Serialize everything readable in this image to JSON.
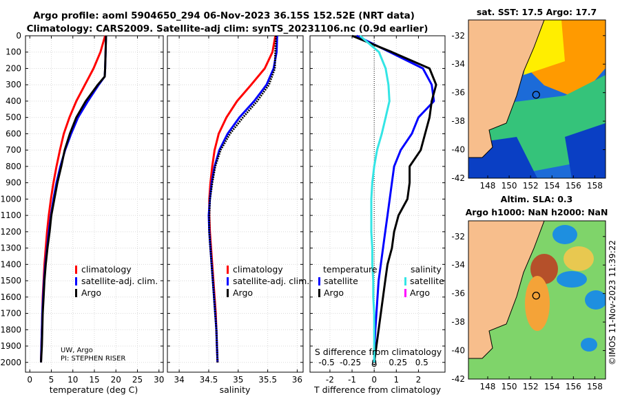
{
  "title": {
    "line1": "Argo profile: aoml 5904650_294 06-Nov-2023 36.15S 152.52E (NRT data)",
    "line2": "Climatology: CARS2009. Satellite-adj clim: synTS_20231106.nc (0.9d earlier)"
  },
  "credit": {
    "line1": "UW, Argo",
    "line2": "PI: STEPHEN RISER"
  },
  "watermark": "©IMOS 11-Nov-2023 11:39:22",
  "colors": {
    "climatology": "#ff0000",
    "satellite": "#0000ff",
    "argo": "#000000",
    "sat_s": "#33e5e5",
    "argo_s": "#ff00ff",
    "land": "#f7be8c"
  },
  "chart_data": [
    {
      "type": "line",
      "panel": "temperature",
      "xlabel": "temperature (deg C)",
      "xlim": [
        -1,
        31
      ],
      "xticks": [
        "0",
        "5",
        "10",
        "15",
        "20",
        "25",
        "30"
      ],
      "xtick_values": [
        0,
        5,
        10,
        15,
        20,
        25,
        30
      ],
      "ylim": [
        2060,
        0
      ],
      "yticks": [
        "0",
        "100",
        "200",
        "300",
        "400",
        "500",
        "600",
        "700",
        "800",
        "900",
        "1000",
        "1100",
        "1200",
        "1300",
        "1400",
        "1500",
        "1600",
        "1700",
        "1800",
        "1900",
        "2000"
      ],
      "ytick_values": [
        0,
        100,
        200,
        300,
        400,
        500,
        600,
        700,
        800,
        900,
        1000,
        1100,
        1200,
        1300,
        1400,
        1500,
        1600,
        1700,
        1800,
        1900,
        2000
      ],
      "legend": [
        "climatology",
        "satellite-adj. clim.",
        "Argo"
      ],
      "series": [
        {
          "name": "climatology",
          "color": "#ff0000",
          "depth": [
            0,
            100,
            200,
            300,
            400,
            500,
            600,
            700,
            800,
            900,
            1000,
            1100,
            1200,
            1300,
            1400,
            1500,
            1600,
            1700,
            1800,
            1900,
            2000
          ],
          "values": [
            17.5,
            16.4,
            14.8,
            12.8,
            10.8,
            9.2,
            7.9,
            7.0,
            6.2,
            5.5,
            4.9,
            4.4,
            4.0,
            3.7,
            3.4,
            3.2,
            3.0,
            2.9,
            2.8,
            2.7,
            2.6
          ]
        },
        {
          "name": "satellite-adj. clim.",
          "color": "#0000ff",
          "depth": [
            0,
            100,
            200,
            250,
            300,
            400,
            500,
            600,
            700,
            800,
            900,
            1000,
            1100,
            1200,
            1300,
            1400,
            1500,
            1600,
            1700,
            1800,
            1900,
            2000
          ],
          "values": [
            17.7,
            17.6,
            17.5,
            17.4,
            16.0,
            13.5,
            11.2,
            9.6,
            8.2,
            7.1,
            6.2,
            5.5,
            4.9,
            4.4,
            4.0,
            3.6,
            3.3,
            3.1,
            2.9,
            2.8,
            2.7,
            2.6
          ]
        },
        {
          "name": "Argo",
          "color": "#000000",
          "depth": [
            0,
            100,
            200,
            250,
            300,
            400,
            500,
            600,
            700,
            800,
            900,
            1000,
            1100,
            1200,
            1300,
            1400,
            1500,
            1600,
            1700,
            1800,
            1900,
            2000
          ],
          "values": [
            17.7,
            17.6,
            17.5,
            17.4,
            15.8,
            13.0,
            10.8,
            9.3,
            8.1,
            7.3,
            6.4,
            5.7,
            5.0,
            4.6,
            4.1,
            3.7,
            3.4,
            3.2,
            3.0,
            2.9,
            2.8,
            2.6
          ]
        }
      ]
    },
    {
      "type": "line",
      "panel": "salinity",
      "xlabel": "salinity",
      "xlim": [
        33.8,
        36.1
      ],
      "xticks": [
        "34",
        "34.5",
        "35",
        "35.5",
        "36"
      ],
      "xtick_values": [
        34,
        34.5,
        35,
        35.5,
        36
      ],
      "ylim": [
        2060,
        0
      ],
      "legend": [
        "climatology",
        "satellite-adj. clim.",
        "Argo"
      ],
      "series": [
        {
          "name": "climatology",
          "color": "#ff0000",
          "depth": [
            0,
            100,
            200,
            300,
            400,
            500,
            600,
            700,
            800,
            900,
            1000,
            1100,
            1200,
            1300,
            1400,
            1500,
            1600,
            1700,
            1800,
            1900,
            2000
          ],
          "values": [
            35.63,
            35.58,
            35.45,
            35.22,
            34.98,
            34.8,
            34.67,
            34.6,
            34.56,
            34.53,
            34.51,
            34.51,
            34.52,
            34.54,
            34.56,
            34.58,
            34.6,
            34.62,
            34.63,
            34.64,
            34.65
          ]
        },
        {
          "name": "satellite-adj. clim.",
          "color": "#0000ff",
          "depth": [
            0,
            100,
            200,
            300,
            400,
            500,
            600,
            700,
            800,
            900,
            1000,
            1100,
            1200,
            1300,
            1400,
            1500,
            1600,
            1700,
            1800,
            1900,
            2000
          ],
          "values": [
            35.66,
            35.65,
            35.6,
            35.48,
            35.27,
            35.02,
            34.82,
            34.68,
            34.6,
            34.55,
            34.52,
            34.5,
            34.51,
            34.53,
            34.55,
            34.57,
            34.59,
            34.61,
            34.63,
            34.64,
            34.65
          ]
        },
        {
          "name": "Argo",
          "color": "#000000",
          "depth": [
            0,
            100,
            200,
            300,
            400,
            500,
            600,
            700,
            800,
            900,
            1000,
            1100,
            1200,
            1300,
            1400,
            1500,
            1600,
            1700,
            1800,
            1900,
            2000
          ],
          "values": [
            35.64,
            35.63,
            35.62,
            35.52,
            35.32,
            35.08,
            34.86,
            34.7,
            34.61,
            34.56,
            34.52,
            34.51,
            34.51,
            34.53,
            34.55,
            34.57,
            34.59,
            34.61,
            34.63,
            34.64,
            34.65
          ]
        }
      ]
    },
    {
      "type": "line",
      "panel": "difference",
      "xlabel": "T difference from climatology",
      "xlabel_top": "S difference from climatology",
      "xlim": [
        -2.9,
        3.2
      ],
      "xticks": [
        "-2",
        "-1",
        "0",
        "1",
        "2"
      ],
      "xtick_values": [
        -2,
        -1,
        0,
        1,
        2
      ],
      "sticks": [
        "-0.5",
        "-0.25",
        "0",
        "0.25",
        "0.5"
      ],
      "stick_values": [
        -0.5,
        -0.25,
        0,
        0.25,
        0.5
      ],
      "legend_left_title": "temperature",
      "legend_right_title": "salinity",
      "legend": [
        "satellite",
        "Argo",
        "satellite",
        "Argo"
      ],
      "series": [
        {
          "name": "temperature satellite",
          "color": "#0000ff",
          "depth": [
            0,
            100,
            200,
            300,
            400,
            500,
            600,
            700,
            800,
            900,
            1000,
            1100,
            1200,
            1300,
            1400,
            1500,
            1600,
            1700,
            1800,
            1900,
            2000
          ],
          "values": [
            -0.8,
            0.7,
            2.2,
            2.6,
            2.7,
            2.0,
            1.7,
            1.2,
            0.9,
            0.8,
            0.7,
            0.6,
            0.5,
            0.4,
            0.3,
            0.2,
            0.15,
            0.1,
            0.05,
            0.02,
            0.0
          ]
        },
        {
          "name": "temperature Argo",
          "color": "#000000",
          "depth": [
            0,
            100,
            200,
            300,
            400,
            500,
            600,
            700,
            800,
            900,
            1000,
            1100,
            1200,
            1300,
            1400,
            1500,
            1600,
            1700,
            1800,
            1900,
            2000
          ],
          "values": [
            -1.0,
            0.8,
            2.5,
            2.8,
            2.6,
            2.5,
            2.3,
            2.1,
            1.6,
            1.6,
            1.5,
            1.1,
            0.9,
            0.8,
            0.6,
            0.5,
            0.4,
            0.3,
            0.2,
            0.1,
            0.0
          ]
        },
        {
          "name": "salinity satellite",
          "color": "#33e5e5",
          "depth": [
            0,
            100,
            200,
            300,
            400,
            500,
            600,
            700,
            800,
            900,
            1000,
            1100,
            1200,
            1300,
            1400,
            1500,
            1600,
            1700,
            1800,
            1900,
            2000
          ],
          "values": [
            -0.15,
            0.05,
            0.12,
            0.15,
            0.16,
            0.12,
            0.08,
            0.03,
            0.0,
            -0.02,
            -0.03,
            -0.03,
            -0.03,
            -0.02,
            -0.02,
            -0.01,
            -0.01,
            0.0,
            0.0,
            0.0,
            0.0
          ]
        }
      ]
    }
  ],
  "maps": {
    "sst": {
      "title": "sat. SST: 17.5 Argo: 17.7",
      "lat_ticks": [
        "-32",
        "-34",
        "-36",
        "-38",
        "-40",
        "-42"
      ],
      "lon_ticks": [
        "148",
        "150",
        "152",
        "154",
        "156",
        "158"
      ],
      "float_lon": 152.52,
      "float_lat": -36.15
    },
    "sla": {
      "title_line1": "Altim. SLA: 0.3",
      "title_line2": "Argo h1000: NaN h2000: NaN",
      "lat_ticks": [
        "-32",
        "-34",
        "-36",
        "-38",
        "-40",
        "-42"
      ],
      "lon_ticks": [
        "148",
        "150",
        "152",
        "154",
        "156",
        "158"
      ],
      "float_lon": 152.52,
      "float_lat": -36.15
    }
  }
}
